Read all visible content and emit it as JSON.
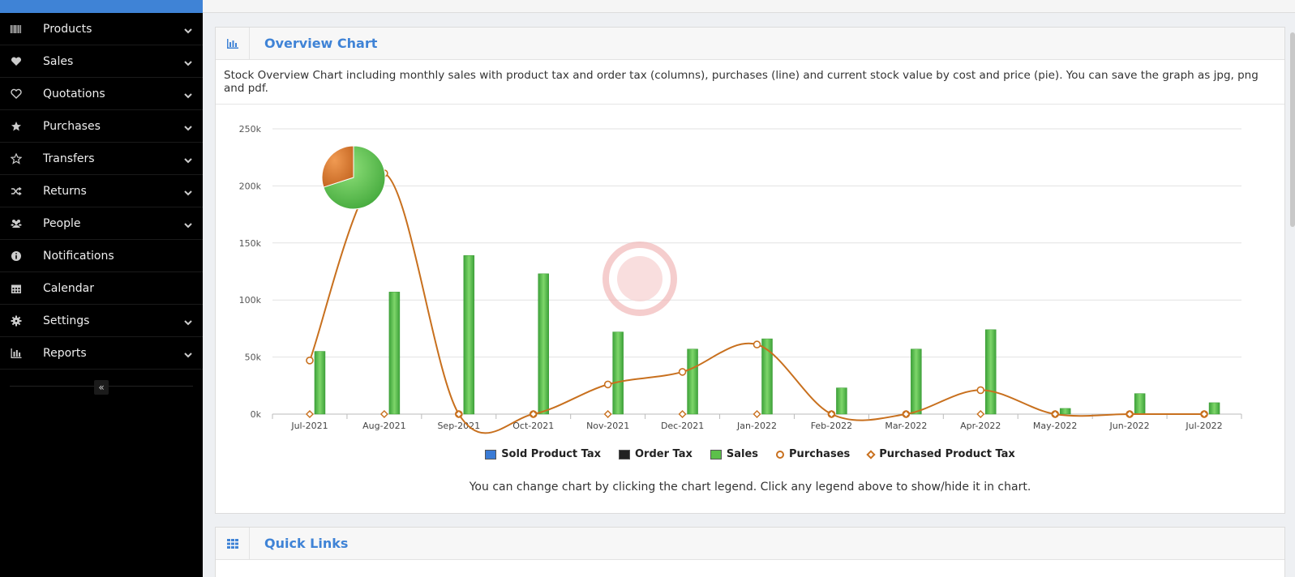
{
  "sidebar": {
    "items": [
      {
        "label": "Products",
        "icon": "barcode-icon",
        "chevron": true
      },
      {
        "label": "Sales",
        "icon": "heart-icon",
        "chevron": true
      },
      {
        "label": "Quotations",
        "icon": "heart-outline-icon",
        "chevron": true
      },
      {
        "label": "Purchases",
        "icon": "star-icon",
        "chevron": true
      },
      {
        "label": "Transfers",
        "icon": "star-outline-icon",
        "chevron": true
      },
      {
        "label": "Returns",
        "icon": "random-icon",
        "chevron": true
      },
      {
        "label": "People",
        "icon": "users-icon",
        "chevron": true
      },
      {
        "label": "Notifications",
        "icon": "info-icon",
        "chevron": false
      },
      {
        "label": "Calendar",
        "icon": "calendar-icon",
        "chevron": false
      },
      {
        "label": "Settings",
        "icon": "gear-icon",
        "chevron": true
      },
      {
        "label": "Reports",
        "icon": "bar-chart-icon",
        "chevron": true
      }
    ],
    "collapse_label": "«"
  },
  "overview": {
    "title": "Overview Chart",
    "description": "Stock Overview Chart including monthly sales with product tax and order tax (columns), purchases (line) and current stock value by cost and price (pie). You can save the graph as jpg, png and pdf.",
    "hint": "You can change chart by clicking the chart legend. Click any legend above to show/hide it in chart."
  },
  "quick_links": {
    "title": "Quick Links"
  },
  "colors": {
    "accent": "#3f83d6",
    "sales": "#5cc04a",
    "purchases": "#c8701e",
    "sold_tax": "#3a7bd5",
    "order_tax": "#222222"
  },
  "chart_data": {
    "type": "bar",
    "categories": [
      "Jul-2021",
      "Aug-2021",
      "Sep-2021",
      "Oct-2021",
      "Nov-2021",
      "Dec-2021",
      "Jan-2022",
      "Feb-2022",
      "Mar-2022",
      "Apr-2022",
      "May-2022",
      "Jun-2022",
      "Jul-2022"
    ],
    "yticks": [
      "0k",
      "50k",
      "100k",
      "150k",
      "200k",
      "250k"
    ],
    "ylim": [
      0,
      250000
    ],
    "grid": true,
    "legend_position": "bottom",
    "series": [
      {
        "name": "Sold Product Tax",
        "type": "bar",
        "values": [
          0,
          0,
          0,
          0,
          0,
          0,
          0,
          0,
          0,
          0,
          0,
          0,
          0
        ]
      },
      {
        "name": "Order Tax",
        "type": "bar",
        "values": [
          0,
          0,
          0,
          0,
          0,
          0,
          0,
          0,
          0,
          0,
          0,
          0,
          0
        ]
      },
      {
        "name": "Sales",
        "type": "bar",
        "values": [
          55000,
          107000,
          139000,
          123000,
          72000,
          57000,
          66000,
          23000,
          57000,
          74000,
          5000,
          18000,
          10000
        ]
      },
      {
        "name": "Purchases",
        "type": "line",
        "values": [
          47000,
          211000,
          0,
          0,
          26000,
          37000,
          61000,
          0,
          0,
          21000,
          0,
          0,
          0
        ]
      },
      {
        "name": "Purchased Product Tax",
        "type": "line",
        "values": [
          0,
          0,
          0,
          0,
          0,
          0,
          0,
          0,
          0,
          0,
          0,
          0,
          0
        ]
      }
    ],
    "pie": {
      "slices": [
        {
          "color": "#5cc04a",
          "value": 70
        },
        {
          "color": "#d9762b",
          "value": 30
        }
      ]
    }
  }
}
